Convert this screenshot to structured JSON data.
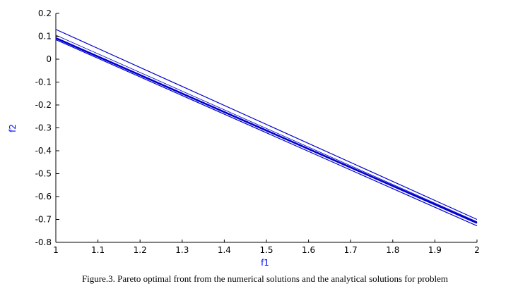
{
  "caption": "Figure.3. Pareto optimal front from the numerical solutions and the analytical solutions for problem",
  "chart_data": {
    "type": "line",
    "title": "",
    "xlabel": "f1",
    "ylabel": "f2",
    "xlim": [
      1,
      2
    ],
    "ylim": [
      -0.8,
      0.2
    ],
    "xticks": [
      "1",
      "1.1",
      "1.2",
      "1.3",
      "1.4",
      "1.5",
      "1.6",
      "1.7",
      "1.8",
      "1.9",
      "2"
    ],
    "yticks": [
      "0.2",
      "0.1",
      "0",
      "-0.1",
      "-0.2",
      "-0.3",
      "-0.4",
      "-0.5",
      "-0.6",
      "-0.7",
      "-0.8"
    ],
    "grid": false,
    "line_color": "#0000cc",
    "axis_label_color": "#0000ff",
    "series": [
      {
        "x": [
          1,
          2
        ],
        "y": [
          0.13,
          -0.7
        ],
        "width": 1.2
      },
      {
        "x": [
          1,
          2
        ],
        "y": [
          0.105,
          -0.71
        ],
        "width": 0.8
      },
      {
        "x": [
          1,
          2
        ],
        "y": [
          0.092,
          -0.715
        ],
        "width": 2.6
      },
      {
        "x": [
          1,
          2
        ],
        "y": [
          0.085,
          -0.728
        ],
        "width": 1.2
      }
    ]
  }
}
